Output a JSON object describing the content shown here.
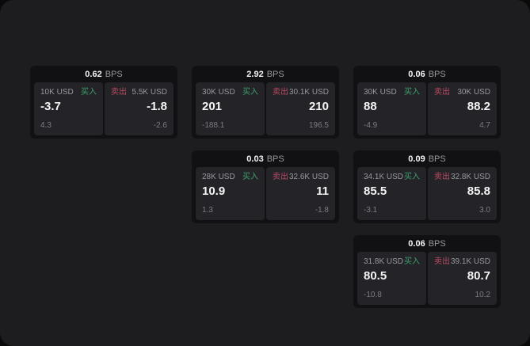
{
  "colors": {
    "backdrop": "#0a0a0a",
    "surface": "#1d1d1f",
    "card": "#111113",
    "panel": "#242428",
    "text_primary": "#f4f4f5",
    "text_secondary": "#97989c",
    "text_muted": "#7b7c80",
    "buy_green": "#3da06c",
    "sell_rose": "#bb4a62"
  },
  "labels": {
    "bps_suffix": "BPS",
    "buy": "买入",
    "sell": "卖出"
  },
  "cards": [
    {
      "bps": "0.62",
      "grid": {
        "col": 0,
        "row": 0
      },
      "buy": {
        "size": "10K USD",
        "price": "-3.7",
        "sub": "4.3"
      },
      "sell": {
        "size": "5.5K USD",
        "price": "-1.8",
        "sub": "-2.6"
      }
    },
    {
      "bps": "2.92",
      "grid": {
        "col": 1,
        "row": 0
      },
      "buy": {
        "size": "30K USD",
        "price": "201",
        "sub": "-188.1"
      },
      "sell": {
        "size": "30.1K USD",
        "price": "210",
        "sub": "196.5"
      }
    },
    {
      "bps": "0.06",
      "grid": {
        "col": 2,
        "row": 0
      },
      "buy": {
        "size": "30K USD",
        "price": "88",
        "sub": "-4.9"
      },
      "sell": {
        "size": "30K USD",
        "price": "88.2",
        "sub": "4.7"
      }
    },
    {
      "bps": "0.03",
      "grid": {
        "col": 1,
        "row": 1
      },
      "buy": {
        "size": "28K USD",
        "price": "10.9",
        "sub": "1.3"
      },
      "sell": {
        "size": "32.6K USD",
        "price": "11",
        "sub": "-1.8"
      }
    },
    {
      "bps": "0.09",
      "grid": {
        "col": 2,
        "row": 1
      },
      "buy": {
        "size": "34.1K USD",
        "price": "85.5",
        "sub": "-3.1"
      },
      "sell": {
        "size": "32.8K USD",
        "price": "85.8",
        "sub": "3.0"
      }
    },
    {
      "bps": "0.06",
      "grid": {
        "col": 2,
        "row": 2
      },
      "buy": {
        "size": "31.8K USD",
        "price": "80.5",
        "sub": "-10.8"
      },
      "sell": {
        "size": "39.1K USD",
        "price": "80.7",
        "sub": "10.2"
      }
    }
  ]
}
